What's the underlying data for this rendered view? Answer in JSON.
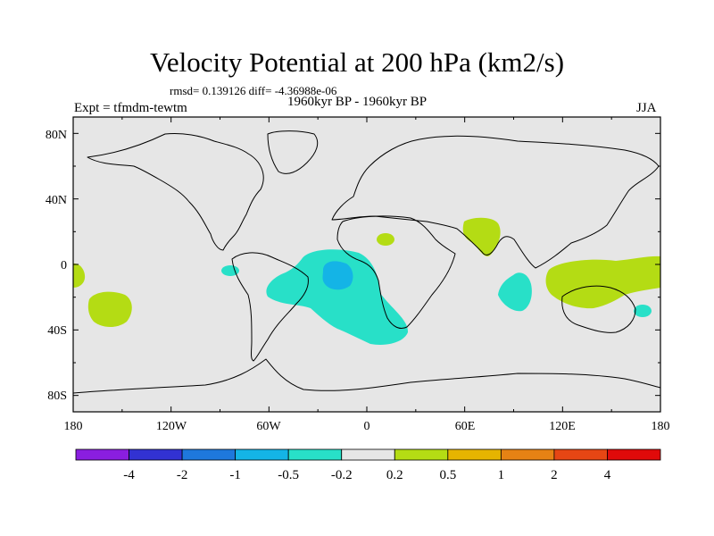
{
  "title": "Velocity Potential at 200 hPa (km2/s)",
  "stats": "rmsd= 0.139126 diff= -4.36988e-06",
  "period": "1960kyr BP - 1960kyr BP",
  "experiment": "Expt = tfmdm-tewtm",
  "season": "JJA",
  "axes": {
    "lat_labels": [
      "80N",
      "40N",
      "0",
      "40S",
      "80S"
    ],
    "lon_labels": [
      "180",
      "120W",
      "60W",
      "0",
      "60E",
      "120E",
      "180"
    ]
  },
  "colorbar": {
    "colors": [
      "#8a1ee0",
      "#3232d2",
      "#1e78dc",
      "#14b4e6",
      "#28e0c8",
      "#e6e6e6",
      "#b4dc14",
      "#e6b400",
      "#e68214",
      "#e64614",
      "#e00a0a"
    ],
    "labels": [
      "-4",
      "-2",
      "-1",
      "-0.5",
      "-0.2",
      "0.2",
      "0.5",
      "1",
      "2",
      "4"
    ]
  },
  "chart_data": {
    "type": "heatmap",
    "title": "Velocity Potential at 200 hPa (km2/s)",
    "variable": "velocity potential difference",
    "units": "km2/s",
    "level_hPa": 200,
    "lon_range": [
      -180,
      180
    ],
    "lat_range": [
      -90,
      90
    ],
    "contour_levels": [
      -4,
      -2,
      -1,
      -0.5,
      -0.2,
      0.2,
      0.5,
      1,
      2,
      4
    ],
    "background_range": "-0.2 to 0.2",
    "anomalies": [
      {
        "region": "South Atlantic / eastern South America",
        "range": "-0.5 to -0.2",
        "center_lon": -20,
        "center_lat": -15
      },
      {
        "region": "South Atlantic core",
        "range": "-1 to -0.5",
        "center_lon": -20,
        "center_lat": -5
      },
      {
        "region": "Eastern tropical Pacific near Ecuador",
        "range": "-0.5 to -0.2",
        "center_lon": -85,
        "center_lat": -3
      },
      {
        "region": "Southern Indian Ocean",
        "range": "-0.5 to -0.2",
        "center_lon": 92,
        "center_lat": -20
      },
      {
        "region": "Southwest Pacific",
        "range": "-0.5 to -0.2",
        "center_lon": 162,
        "center_lat": -30
      },
      {
        "region": "Arabia / India",
        "range": "0.2 to 0.5",
        "center_lon": 65,
        "center_lat": 15
      },
      {
        "region": "West Africa",
        "range": "0.2 to 0.5",
        "center_lon": 4,
        "center_lat": 15
      },
      {
        "region": "Maritime Continent / western Pacific",
        "range": "0.2 to 0.5",
        "center_lon": 140,
        "center_lat": -3
      },
      {
        "region": "Central South Pacific",
        "range": "0.2 to 0.5",
        "center_lon": -162,
        "center_lat": -28
      },
      {
        "region": "Central Pacific near dateline",
        "range": "0.2 to 0.5",
        "center_lon": -178,
        "center_lat": -5
      }
    ]
  }
}
